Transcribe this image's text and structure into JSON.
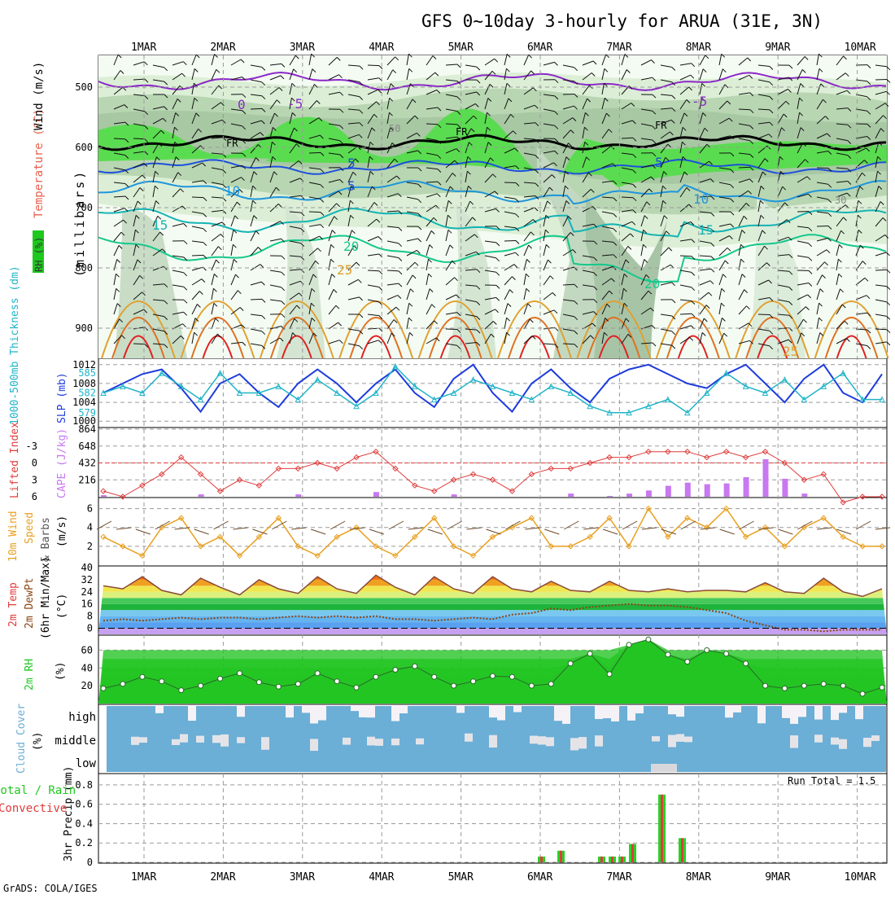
{
  "title": "GFS 0~10day 3-hourly for ARUA (31E, 3N)",
  "footer": "GrADS: COLA/IGES",
  "date_ticks": [
    "1MAR",
    "2MAR",
    "3MAR",
    "4MAR",
    "5MAR",
    "6MAR",
    "7MAR",
    "8MAR",
    "9MAR",
    "10MAR"
  ],
  "colors": {
    "temp_text": "#e8604c",
    "wind_text": "#000000",
    "rh_green": "#1ec81e",
    "slp_blue": "#1e3cdc",
    "thick_cyan": "#20b4c8",
    "li_red": "#e03c3c",
    "cape_purple": "#c878f0",
    "wind10_orange": "#e8a020",
    "cloud_blue": "#6baed6",
    "precip_green": "#28d228",
    "precip_red": "#e03c3c"
  },
  "panels": {
    "upper": {
      "labels": {
        "temp": "Temperature (°C)",
        "wind": "Wind (m/s)",
        "rh": "RH (%)",
        "pressure": "(millibars)"
      },
      "y_ticks": [
        "500",
        "600",
        "700",
        "800",
        "900"
      ],
      "contour_labels": [
        {
          "text": "0",
          "color": "#8c28c8"
        },
        {
          "text": "-5",
          "color": "#8c28c8"
        },
        {
          "text": "-5",
          "color": "#8c28c8"
        },
        {
          "text": "FR",
          "color": "#000000"
        },
        {
          "text": "FR",
          "color": "#000000"
        },
        {
          "text": "FR",
          "color": "#000000"
        },
        {
          "text": "5",
          "color": "#1e50dc"
        },
        {
          "text": "5",
          "color": "#1e50dc"
        },
        {
          "text": "5",
          "color": "#1e50dc"
        },
        {
          "text": "10",
          "color": "#1e96dc"
        },
        {
          "text": "10",
          "color": "#1e96dc"
        },
        {
          "text": "15",
          "color": "#14b4b4"
        },
        {
          "text": "15",
          "color": "#14b4b4"
        },
        {
          "text": "20",
          "color": "#14c88c"
        },
        {
          "text": "20",
          "color": "#14c88c"
        },
        {
          "text": "25",
          "color": "#e0a030"
        },
        {
          "text": "25",
          "color": "#e0a030"
        },
        {
          "text": "50",
          "color": "#888888"
        },
        {
          "text": "30",
          "color": "#888888"
        }
      ]
    },
    "slp": {
      "labels": {
        "thickness": "1000-500mb Thickness (dm)",
        "slp": "SLP (mb)"
      },
      "left_ticks": [
        "585",
        "582",
        "579"
      ],
      "right_ticks": [
        "1012",
        "1008",
        "1004",
        "1000"
      ],
      "slp_ylim": [
        999,
        1013
      ],
      "thick_ylim": [
        577,
        587
      ]
    },
    "cape": {
      "labels": {
        "li": "Lifted Index",
        "cape": "CAPE (J/kg)"
      },
      "left_ticks": [
        "-3",
        "0",
        "3",
        "6"
      ],
      "right_ticks": [
        "864",
        "648",
        "432",
        "216"
      ],
      "li_ylim": [
        6,
        -6
      ],
      "cape_ylim": [
        0,
        864
      ]
    },
    "wind10": {
      "labels": {
        "title": "10m Wind",
        "speed": "Speed",
        "barbs": "& Barbs",
        "unit": "(m/s)"
      },
      "y_ticks": [
        "6",
        "4",
        "2"
      ],
      "ylim": [
        0,
        7
      ]
    },
    "temp2m": {
      "labels": {
        "temp": "2m Temp",
        "dew": "2m DewPt",
        "minmax": "(6hr Min/Max)",
        "unit": "(°C)"
      },
      "y_ticks": [
        "40",
        "32",
        "24",
        "16",
        "8",
        "0"
      ],
      "ylim": [
        -4,
        40
      ]
    },
    "rh2m": {
      "labels": {
        "rh": "2m RH",
        "unit": "(%)"
      },
      "y_ticks": [
        "60",
        "40",
        "20"
      ],
      "ylim": [
        0,
        75
      ]
    },
    "cloud": {
      "labels": {
        "title": "Cloud Cover",
        "unit": "(%)"
      },
      "levels": [
        "high",
        "middle",
        "low"
      ]
    },
    "precip": {
      "labels": {
        "total": "Total / Rain",
        "conv": "Convective",
        "axis": "3hr Precip (mm)",
        "run_total": "Run Total = 1.5"
      },
      "y_ticks": [
        "0.8",
        "0.6",
        "0.4",
        "0.2",
        "0"
      ],
      "ylim": [
        0,
        0.9
      ]
    }
  },
  "chart_data": [
    {
      "type": "line",
      "title": "SLP (mb)",
      "x_hours": [
        0,
        6,
        12,
        18,
        24,
        30,
        36,
        42,
        48,
        54,
        60,
        66,
        72,
        78,
        84,
        90,
        96,
        102,
        108,
        114,
        120,
        126,
        132,
        138,
        144,
        150,
        156,
        162,
        168,
        174,
        180,
        186,
        192,
        198,
        204,
        210,
        216,
        222,
        228,
        234,
        240
      ],
      "series": [
        {
          "name": "SLP (mb)",
          "values": [
            1006,
            1008,
            1010,
            1011,
            1007,
            1002,
            1008,
            1010,
            1006,
            1003,
            1008,
            1011,
            1008,
            1004,
            1008,
            1011,
            1006,
            1003,
            1009,
            1012,
            1006,
            1002,
            1008,
            1011,
            1007,
            1004,
            1009,
            1011,
            1012,
            1010,
            1008,
            1007,
            1010,
            1012,
            1008,
            1004,
            1009,
            1012,
            1006,
            1004,
            1010
          ]
        },
        {
          "name": "1000-500mb Thickness (dm)",
          "values": [
            582,
            583,
            582,
            585,
            583,
            581,
            585,
            582,
            582,
            583,
            581,
            584,
            582,
            580,
            582,
            586,
            583,
            581,
            582,
            584,
            583,
            582,
            581,
            583,
            582,
            580,
            579,
            579,
            580,
            581,
            579,
            582,
            585,
            583,
            582,
            584,
            581,
            583,
            585,
            581,
            581
          ]
        }
      ]
    },
    {
      "type": "bar",
      "title": "CAPE (J/kg) / Lifted Index",
      "x_hours": [
        0,
        6,
        12,
        18,
        24,
        30,
        36,
        42,
        48,
        54,
        60,
        66,
        72,
        78,
        84,
        90,
        96,
        102,
        108,
        114,
        120,
        126,
        132,
        138,
        144,
        150,
        156,
        162,
        168,
        174,
        180,
        186,
        192,
        198,
        204,
        210,
        216,
        222,
        228,
        234,
        240
      ],
      "series": [
        {
          "name": "CAPE (J/kg)",
          "values": [
            20,
            0,
            0,
            0,
            0,
            30,
            0,
            0,
            0,
            0,
            30,
            0,
            0,
            0,
            60,
            0,
            0,
            0,
            30,
            0,
            0,
            0,
            0,
            0,
            40,
            0,
            10,
            40,
            80,
            140,
            180,
            160,
            170,
            250,
            480,
            230,
            40,
            0,
            0,
            0,
            0
          ]
        },
        {
          "name": "Lifted Index",
          "values": [
            5,
            6,
            4,
            2,
            -1,
            2,
            5,
            3,
            4,
            1,
            1,
            0,
            1,
            -1,
            -2,
            1,
            4,
            5,
            3,
            2,
            3,
            5,
            2,
            1,
            1,
            0,
            -1,
            -1,
            -2,
            -2,
            -2,
            -1,
            -2,
            -1,
            -2,
            0,
            3,
            2,
            7,
            6,
            6
          ]
        }
      ]
    },
    {
      "type": "line",
      "title": "10m Wind Speed (m/s)",
      "x_hours": [
        0,
        6,
        12,
        18,
        24,
        30,
        36,
        42,
        48,
        54,
        60,
        66,
        72,
        78,
        84,
        90,
        96,
        102,
        108,
        114,
        120,
        126,
        132,
        138,
        144,
        150,
        156,
        162,
        168,
        174,
        180,
        186,
        192,
        198,
        204,
        210,
        216,
        222,
        228,
        234,
        240
      ],
      "series": [
        {
          "name": "10m Wind Speed",
          "values": [
            3,
            2,
            1,
            4,
            5,
            2,
            3,
            1,
            3,
            5,
            2,
            1,
            3,
            4,
            2,
            1,
            3,
            5,
            2,
            1,
            3,
            4,
            5,
            2,
            2,
            3,
            5,
            2,
            6,
            3,
            5,
            4,
            6,
            3,
            4,
            2,
            4,
            5,
            3,
            2,
            2
          ]
        }
      ]
    },
    {
      "type": "area",
      "title": "2m Temp / DewPt (°C)",
      "x_hours": [
        0,
        6,
        12,
        18,
        24,
        30,
        36,
        42,
        48,
        54,
        60,
        66,
        72,
        78,
        84,
        90,
        96,
        102,
        108,
        114,
        120,
        126,
        132,
        138,
        144,
        150,
        156,
        162,
        168,
        174,
        180,
        186,
        192,
        198,
        204,
        210,
        216,
        222,
        228,
        234,
        240
      ],
      "series": [
        {
          "name": "2m Temp",
          "values": [
            28,
            26,
            34,
            25,
            22,
            33,
            27,
            22,
            32,
            26,
            23,
            34,
            26,
            23,
            35,
            27,
            22,
            34,
            26,
            23,
            34,
            26,
            24,
            31,
            25,
            24,
            31,
            25,
            24,
            26,
            24,
            25,
            25,
            24,
            30,
            24,
            23,
            33,
            24,
            21,
            26
          ]
        },
        {
          "name": "2m DewPt",
          "values": [
            5,
            6,
            5,
            6,
            7,
            6,
            7,
            7,
            6,
            7,
            8,
            7,
            8,
            7,
            8,
            6,
            6,
            5,
            6,
            7,
            6,
            9,
            10,
            13,
            12,
            14,
            15,
            16,
            15,
            15,
            14,
            12,
            10,
            5,
            2,
            -1,
            -1,
            -2,
            -1,
            -1,
            -1
          ]
        }
      ]
    },
    {
      "type": "area",
      "title": "2m RH (%)",
      "x_hours": [
        0,
        6,
        12,
        18,
        24,
        30,
        36,
        42,
        48,
        54,
        60,
        66,
        72,
        78,
        84,
        90,
        96,
        102,
        108,
        114,
        120,
        126,
        132,
        138,
        144,
        150,
        156,
        162,
        168,
        174,
        180,
        186,
        192,
        198,
        204,
        210,
        216,
        222,
        228,
        234,
        240
      ],
      "series": [
        {
          "name": "2m RH",
          "values": [
            17,
            22,
            30,
            25,
            15,
            20,
            28,
            34,
            24,
            19,
            22,
            34,
            25,
            18,
            30,
            38,
            42,
            30,
            20,
            25,
            31,
            30,
            20,
            22,
            45,
            56,
            33,
            66,
            72,
            55,
            47,
            60,
            56,
            45,
            20,
            17,
            20,
            22,
            20,
            11,
            18
          ]
        }
      ]
    },
    {
      "type": "bar",
      "title": "3hr Precip (mm)",
      "categories": [
        "6MAR+02",
        "6MAR+07",
        "6MAR+18",
        "7MAR+00",
        "7MAR+03",
        "7MAR+10",
        "7MAR+23",
        "8MAR+06"
      ],
      "values": [
        0.06,
        0.12,
        0.06,
        0.06,
        0.06,
        0.19,
        0.7,
        0.25
      ]
    }
  ]
}
